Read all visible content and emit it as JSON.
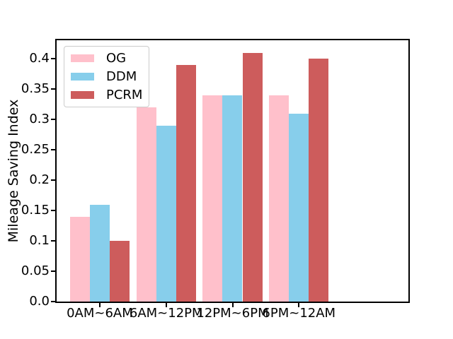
{
  "figure": {
    "background": "#ffffff",
    "spine_color": "#000000"
  },
  "chart_data": {
    "type": "bar",
    "title": "",
    "xlabel": "",
    "ylabel": "Mileage Saving Index",
    "categories": [
      "0AM~6AM",
      "6AM~12PM",
      "12PM~6PM",
      "6PM~12AM"
    ],
    "series": [
      {
        "name": "OG",
        "color": "#FFC0CB",
        "values": [
          0.14,
          0.32,
          0.34,
          0.34
        ]
      },
      {
        "name": "DDM",
        "color": "#87CEEB",
        "values": [
          0.16,
          0.29,
          0.34,
          0.31
        ]
      },
      {
        "name": "PCRM",
        "color": "#CD5C5C",
        "values": [
          0.1,
          0.39,
          0.41,
          0.4
        ]
      }
    ],
    "ylim": [
      0,
      0.4305
    ],
    "yticks": [
      0,
      0.05,
      0.1,
      0.15,
      0.2,
      0.25,
      0.3,
      0.35,
      0.4
    ],
    "ytick_labels": [
      "0.0",
      "0.05",
      "0.1",
      "0.15",
      "0.2",
      "0.25",
      "0.3",
      "0.35",
      "0.4"
    ],
    "legend": {
      "position": "upper-left",
      "entries": [
        "OG",
        "DDM",
        "PCRM"
      ]
    },
    "grid": false,
    "bar_width": 0.3,
    "group_padding": 0.65
  }
}
